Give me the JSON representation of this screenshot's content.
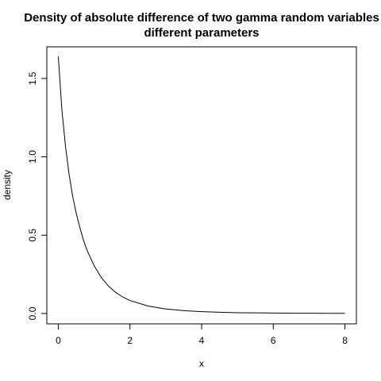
{
  "chart_data": {
    "type": "line",
    "title": "Density of absolute difference of two gamma random variables",
    "subtitle": "different parameters",
    "xlabel": "x",
    "ylabel": "density",
    "xlim": [
      -0.32,
      8.32
    ],
    "ylim": [
      -0.066,
      1.702
    ],
    "x_ticks": [
      0,
      2,
      4,
      6,
      8
    ],
    "x_tick_labels": [
      "0",
      "2",
      "4",
      "6",
      "8"
    ],
    "y_ticks": [
      0.0,
      0.5,
      1.0,
      1.5
    ],
    "y_tick_labels": [
      "0.0",
      "0.5",
      "1.0",
      "1.5"
    ],
    "grid": false,
    "series": [
      {
        "color": "#000000",
        "x": [
          0.0,
          0.1,
          0.2,
          0.3,
          0.4,
          0.5,
          0.6,
          0.7,
          0.8,
          1.0,
          1.2,
          1.4,
          1.6,
          1.8,
          2.0,
          2.5,
          3.0,
          3.5,
          4.0,
          4.5,
          5.0,
          5.5,
          6.0,
          6.5,
          7.0,
          7.5,
          8.0
        ],
        "y": [
          1.64,
          1.3,
          1.07,
          0.89,
          0.75,
          0.64,
          0.55,
          0.47,
          0.405,
          0.305,
          0.23,
          0.175,
          0.135,
          0.105,
          0.083,
          0.048,
          0.029,
          0.018,
          0.012,
          0.008,
          0.005,
          0.004,
          0.003,
          0.002,
          0.0015,
          0.001,
          0.001
        ]
      }
    ]
  }
}
